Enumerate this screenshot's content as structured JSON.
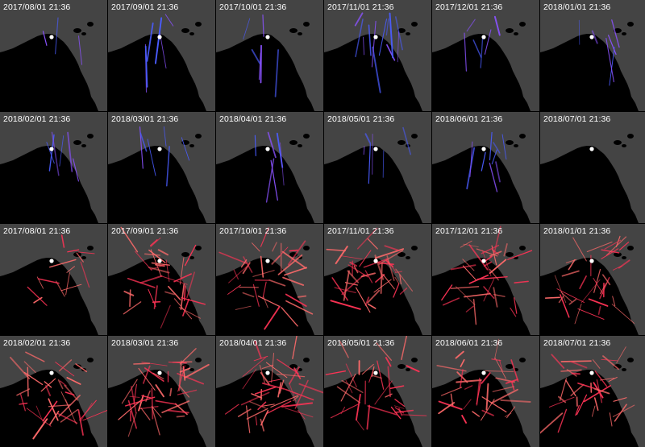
{
  "colors": {
    "background": "#000000",
    "land": "#444444",
    "label": "#ffffff",
    "marker": "#ffffff",
    "series_a": "#4a5cff",
    "series_a_alt": "#8a52ff",
    "series_b": "#ff3355",
    "series_b_alt": "#ff6a6a"
  },
  "panels": [
    {
      "label": "2017/08/01 21:36",
      "series": "a",
      "density": 1
    },
    {
      "label": "2017/09/01 21:36",
      "series": "a",
      "density": 2
    },
    {
      "label": "2017/10/01 21:36",
      "series": "a",
      "density": 2
    },
    {
      "label": "2017/11/01 21:36",
      "series": "a",
      "density": 4
    },
    {
      "label": "2017/12/01 21:36",
      "series": "a",
      "density": 2
    },
    {
      "label": "2018/01/01 21:36",
      "series": "a",
      "density": 2
    },
    {
      "label": "2018/02/01 21:36",
      "series": "a",
      "density": 2
    },
    {
      "label": "2018/03/01 21:36",
      "series": "a",
      "density": 2
    },
    {
      "label": "2018/04/01 21:36",
      "series": "a",
      "density": 2
    },
    {
      "label": "2018/05/01 21:36",
      "series": "a",
      "density": 2
    },
    {
      "label": "2018/06/01 21:36",
      "series": "a",
      "density": 3
    },
    {
      "label": "2018/07/01 21:36",
      "series": "a",
      "density": 0
    },
    {
      "label": "2017/08/01 21:36",
      "series": "b",
      "density": 2
    },
    {
      "label": "2017/09/01 21:36",
      "series": "b",
      "density": 5
    },
    {
      "label": "2017/10/01 21:36",
      "series": "b",
      "density": 5
    },
    {
      "label": "2017/11/01 21:36",
      "series": "b",
      "density": 6
    },
    {
      "label": "2017/12/01 21:36",
      "series": "b",
      "density": 5
    },
    {
      "label": "2018/01/01 21:36",
      "series": "b",
      "density": 5
    },
    {
      "label": "2018/02/01 21:36",
      "series": "b",
      "density": 5
    },
    {
      "label": "2018/03/01 21:36",
      "series": "b",
      "density": 6
    },
    {
      "label": "2018/04/01 21:36",
      "series": "b",
      "density": 6
    },
    {
      "label": "2018/05/01 21:36",
      "series": "b",
      "density": 5
    },
    {
      "label": "2018/06/01 21:36",
      "series": "b",
      "density": 5
    },
    {
      "label": "2018/07/01 21:36",
      "series": "b",
      "density": 5
    }
  ]
}
